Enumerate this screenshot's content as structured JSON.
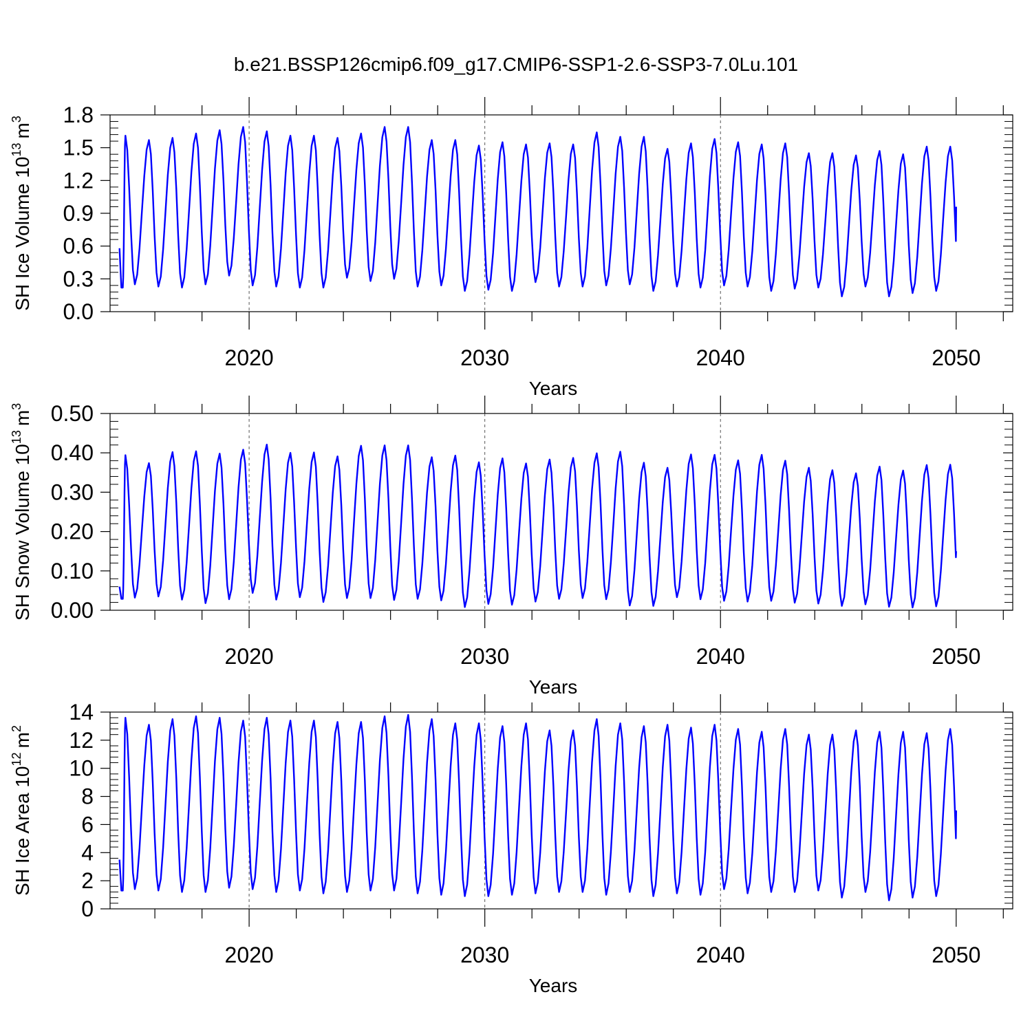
{
  "figure": {
    "title": "b.e21.BSSP126cmip6.f09_g17.CMIP6-SSP1-2.6-SSP3-7.0Lu.101",
    "line_color": "#0000ff",
    "vline_color": "#555555"
  },
  "chart_data": [
    {
      "type": "line",
      "ylabel": "SH Ice Volume 10",
      "ylabel_exp": "13",
      "ylabel_unit": "m",
      "ylabel_unit_exp": "3",
      "xlabel": "Years",
      "ylim": [
        0,
        1.8
      ],
      "yticks": [
        0.0,
        0.3,
        0.6,
        0.9,
        1.2,
        1.5,
        1.8
      ],
      "ytick_labels": [
        "0.0",
        "0.3",
        "0.6",
        "0.9",
        "1.2",
        "1.5",
        "1.8"
      ],
      "xlim": [
        2014.1,
        2052.4
      ],
      "xticks": [
        2020,
        2030,
        2040,
        2050
      ],
      "xtick_labels": [
        "2020",
        "2030",
        "2040",
        "2050"
      ],
      "vlines": [
        2020,
        2030,
        2040
      ],
      "start_year": 2014.5,
      "end_year": 2050.0,
      "start_value": 0.58,
      "end_value": 0.96,
      "annual_max": [
        1.61,
        1.57,
        1.59,
        1.63,
        1.66,
        1.69,
        1.65,
        1.61,
        1.61,
        1.59,
        1.63,
        1.69,
        1.69,
        1.57,
        1.57,
        1.52,
        1.55,
        1.53,
        1.54,
        1.53,
        1.64,
        1.6,
        1.6,
        1.49,
        1.54,
        1.58,
        1.55,
        1.53,
        1.54,
        1.45,
        1.45,
        1.43,
        1.47,
        1.44,
        1.51,
        1.51
      ],
      "annual_min": [
        0.22,
        0.25,
        0.23,
        0.22,
        0.25,
        0.33,
        0.24,
        0.23,
        0.22,
        0.22,
        0.31,
        0.28,
        0.3,
        0.23,
        0.24,
        0.19,
        0.2,
        0.19,
        0.27,
        0.23,
        0.23,
        0.24,
        0.25,
        0.19,
        0.23,
        0.22,
        0.24,
        0.23,
        0.19,
        0.21,
        0.22,
        0.14,
        0.23,
        0.14,
        0.17,
        0.19
      ]
    },
    {
      "type": "line",
      "ylabel": "SH Snow Volume 10",
      "ylabel_exp": "13",
      "ylabel_unit": "m",
      "ylabel_unit_exp": "3",
      "xlabel": "Years",
      "ylim": [
        0,
        0.5
      ],
      "yticks": [
        0.0,
        0.1,
        0.2,
        0.3,
        0.4,
        0.5
      ],
      "ytick_labels": [
        "0.00",
        "0.10",
        "0.20",
        "0.30",
        "0.40",
        "0.50"
      ],
      "xlim": [
        2014.1,
        2052.4
      ],
      "xticks": [
        2020,
        2030,
        2040,
        2050
      ],
      "xtick_labels": [
        "2020",
        "2030",
        "2040",
        "2050"
      ],
      "vlines": [
        2020,
        2030,
        2040
      ],
      "start_year": 2014.5,
      "end_year": 2050.0,
      "start_value": 0.06,
      "end_value": 0.15,
      "annual_max": [
        0.394,
        0.374,
        0.402,
        0.404,
        0.398,
        0.408,
        0.421,
        0.4,
        0.401,
        0.391,
        0.418,
        0.419,
        0.419,
        0.389,
        0.393,
        0.376,
        0.386,
        0.373,
        0.383,
        0.387,
        0.399,
        0.403,
        0.375,
        0.362,
        0.396,
        0.395,
        0.381,
        0.395,
        0.38,
        0.362,
        0.356,
        0.348,
        0.365,
        0.355,
        0.369,
        0.37
      ],
      "annual_min": [
        0.029,
        0.032,
        0.035,
        0.027,
        0.018,
        0.028,
        0.044,
        0.027,
        0.033,
        0.021,
        0.031,
        0.031,
        0.026,
        0.029,
        0.025,
        0.008,
        0.016,
        0.014,
        0.022,
        0.029,
        0.031,
        0.028,
        0.012,
        0.011,
        0.033,
        0.028,
        0.024,
        0.022,
        0.024,
        0.019,
        0.017,
        0.011,
        0.015,
        0.009,
        0.007,
        0.01
      ]
    },
    {
      "type": "line",
      "ylabel": "SH Ice Area 10",
      "ylabel_exp": "12",
      "ylabel_unit": "m",
      "ylabel_unit_exp": "2",
      "xlabel": "Years",
      "ylim": [
        0,
        14
      ],
      "yticks": [
        0,
        2,
        4,
        6,
        8,
        10,
        12,
        14
      ],
      "ytick_labels": [
        "0",
        "2",
        "4",
        "6",
        "8",
        "10",
        "12",
        "14"
      ],
      "xlim": [
        2014.1,
        2052.4
      ],
      "xticks": [
        2020,
        2030,
        2040,
        2050
      ],
      "xtick_labels": [
        "2020",
        "2030",
        "2040",
        "2050"
      ],
      "vlines": [
        2020,
        2030,
        2040
      ],
      "start_year": 2014.5,
      "end_year": 2050.0,
      "start_value": 3.5,
      "end_value": 7.0,
      "annual_max": [
        13.6,
        13.1,
        13.5,
        13.7,
        13.6,
        13.4,
        13.6,
        13.4,
        13.4,
        13.3,
        13.3,
        13.7,
        13.8,
        13.5,
        13.2,
        13.2,
        13.0,
        13.2,
        12.7,
        12.7,
        13.5,
        13.2,
        13.0,
        13.1,
        12.9,
        13.1,
        12.8,
        12.6,
        12.8,
        12.4,
        12.4,
        12.7,
        12.6,
        12.6,
        12.5,
        12.8
      ],
      "annual_min": [
        1.3,
        1.4,
        1.3,
        1.2,
        1.2,
        1.5,
        1.4,
        1.2,
        1.3,
        1.1,
        1.2,
        1.3,
        1.3,
        1.1,
        1.0,
        0.9,
        0.9,
        1.0,
        1.1,
        1.2,
        1.2,
        1.0,
        1.2,
        0.9,
        1.1,
        1.0,
        1.4,
        1.1,
        1.2,
        1.2,
        1.3,
        0.8,
        1.2,
        0.6,
        0.8,
        0.9
      ]
    }
  ]
}
